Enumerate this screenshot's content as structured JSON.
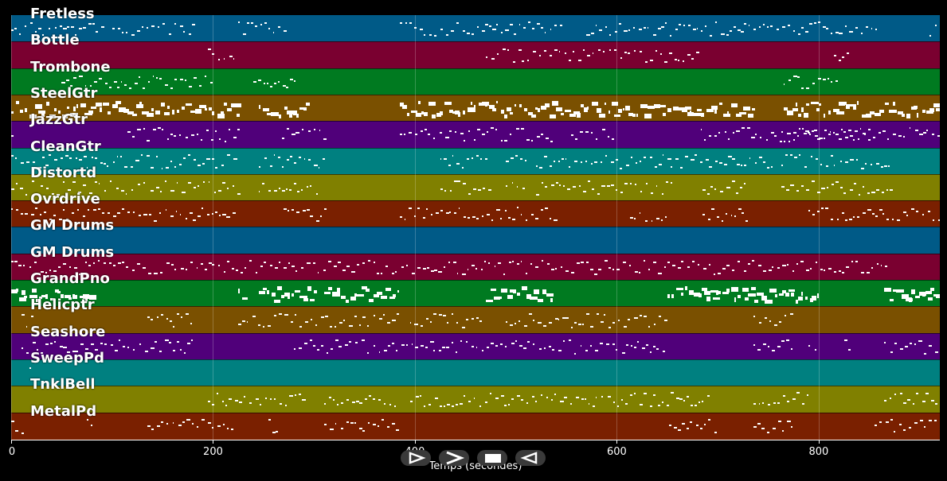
{
  "tracks": [
    {
      "name": "Fretless",
      "color": "#005a87"
    },
    {
      "name": "Bottle",
      "color": "#7a0030"
    },
    {
      "name": "Trombone",
      "color": "#007a20"
    },
    {
      "name": "SteelGtr",
      "color": "#7a5000"
    },
    {
      "name": "JazzGtr",
      "color": "#50007a"
    },
    {
      "name": "CleanGtr",
      "color": "#008080"
    },
    {
      "name": "Distortd",
      "color": "#808000"
    },
    {
      "name": "Ovrdrive",
      "color": "#7a2000"
    },
    {
      "name": "GM Drums",
      "color": "#005a87"
    },
    {
      "name": "GM Drums",
      "color": "#7a0030"
    },
    {
      "name": "GrandPno",
      "color": "#007a20"
    },
    {
      "name": "Helicptr",
      "color": "#7a5000"
    },
    {
      "name": "Seashore",
      "color": "#50007a"
    },
    {
      "name": "SweepPd",
      "color": "#008080"
    },
    {
      "name": "TnklBell",
      "color": "#808000"
    },
    {
      "name": "MetalPd",
      "color": "#7a2000"
    }
  ],
  "axis": {
    "xlabel": "Temps (secondes)",
    "ticks": [
      "0",
      "200",
      "400",
      "600",
      "800"
    ],
    "tick_values": [
      0,
      200,
      400,
      600,
      800
    ],
    "xlim": [
      0,
      920
    ]
  },
  "controls": [
    {
      "name": "play-from-start-button",
      "icon": "play-outline-icon"
    },
    {
      "name": "play-button",
      "icon": "play-icon"
    },
    {
      "name": "stop-button",
      "icon": "stop-icon"
    },
    {
      "name": "rewind-button",
      "icon": "rewind-icon"
    }
  ],
  "activity": [
    [
      [
        0,
        92
      ],
      [
        100,
        180
      ],
      [
        225,
        270
      ],
      [
        385,
        545
      ],
      [
        570,
        858
      ],
      [
        910,
        948
      ]
    ],
    [
      [
        195,
        220
      ],
      [
        470,
        680
      ],
      [
        815,
        828
      ]
    ],
    [
      [
        50,
        200
      ],
      [
        240,
        282
      ],
      [
        765,
        822
      ]
    ],
    [
      [
        0,
        225
      ],
      [
        245,
        295
      ],
      [
        385,
        735
      ],
      [
        765,
        948
      ]
    ],
    [
      [
        0,
        5
      ],
      [
        115,
        225
      ],
      [
        268,
        310
      ],
      [
        385,
        540
      ],
      [
        555,
        600
      ],
      [
        683,
        850
      ],
      [
        763,
        920
      ]
    ],
    [
      [
        0,
        135
      ],
      [
        138,
        225
      ],
      [
        245,
        310
      ],
      [
        425,
        475
      ],
      [
        490,
        510
      ],
      [
        520,
        758
      ],
      [
        763,
        873
      ]
    ],
    [
      [
        0,
        135
      ],
      [
        138,
        225
      ],
      [
        245,
        305
      ],
      [
        425,
        475
      ],
      [
        490,
        510
      ],
      [
        520,
        655
      ],
      [
        685,
        730
      ],
      [
        763,
        873
      ]
    ],
    [
      [
        0,
        225
      ],
      [
        270,
        310
      ],
      [
        385,
        540
      ],
      [
        613,
        650
      ],
      [
        685,
        730
      ],
      [
        790,
        930
      ]
    ],
    [],
    [
      [
        0,
        870
      ]
    ],
    [
      [
        0,
        80
      ],
      [
        225,
        230
      ],
      [
        245,
        300
      ],
      [
        310,
        385
      ],
      [
        470,
        535
      ],
      [
        650,
        800
      ],
      [
        865,
        920
      ]
    ],
    [
      [
        10,
        20
      ],
      [
        135,
        180
      ],
      [
        225,
        385
      ],
      [
        395,
        470
      ],
      [
        490,
        650
      ],
      [
        735,
        775
      ]
    ],
    [
      [
        10,
        180
      ],
      [
        280,
        650
      ],
      [
        735,
        775
      ],
      [
        790,
        800
      ],
      [
        825,
        830
      ],
      [
        865,
        920
      ]
    ],
    [
      [
        18,
        24
      ]
    ],
    [
      [
        195,
        290
      ],
      [
        310,
        385
      ],
      [
        395,
        690
      ],
      [
        735,
        790
      ],
      [
        865,
        920
      ]
    ],
    [
      [
        0,
        12
      ],
      [
        75,
        80
      ],
      [
        135,
        220
      ],
      [
        255,
        265
      ],
      [
        310,
        385
      ],
      [
        652,
        700
      ],
      [
        735,
        775
      ],
      [
        855,
        920
      ]
    ]
  ]
}
